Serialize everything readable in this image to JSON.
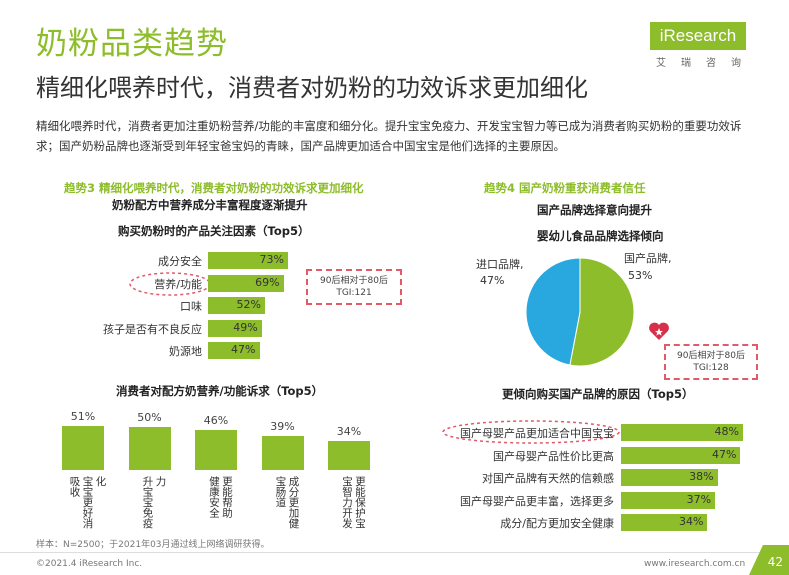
{
  "header": {
    "title": "奶粉品类趋势",
    "subtitle": "精细化喂养时代，消费者对奶粉的功效诉求更加细化",
    "intro": "精细化喂养时代，消费者更加注重奶粉营养/功能的丰富度和细分化。提升宝宝免疫力、开发宝宝智力等已成为消费者购买奶粉的重要功效诉求；国产奶粉品牌也逐渐受到年轻宝爸宝妈的青睐，国产品牌更加适合中国宝宝是他们选择的主要原因。",
    "logo_text": "iResearch",
    "logo_sub": "艾瑞咨询",
    "brand_color": "#8dbd2b"
  },
  "left": {
    "trend_title": "趋势3 精细化喂养时代，消费者对奶粉的功效诉求更加细化",
    "section_title": "奶粉配方中营养成分丰富程度逐渐提升",
    "tgi_line1": "90后相对于80后",
    "tgi_line2": "TGI:121"
  },
  "right": {
    "trend_title": "趋势4 国产奶粉重获消费者信任",
    "section_title": "国产品牌选择意向提升",
    "tgi_line1": "90后相对于80后",
    "tgi_line2": "TGI:128"
  },
  "chart_data": [
    {
      "type": "bar",
      "orientation": "horizontal",
      "title": "购买奶粉时的产品关注因素（Top5）",
      "categories": [
        "成分安全",
        "营养/功能",
        "口味",
        "孩子是否有不良反应",
        "奶源地"
      ],
      "values": [
        73,
        69,
        52,
        49,
        47
      ],
      "value_labels": [
        "73%",
        "69%",
        "52%",
        "49%",
        "47%"
      ],
      "highlight": "营养/功能"
    },
    {
      "type": "bar",
      "orientation": "vertical",
      "title": "消费者对配方奶营养/功能诉求（Top5）",
      "categories": [
        "宝宝更好消化 吸收",
        "提升宝宝免疫力",
        "更能帮助宝宝健康安全",
        "成分更加健康宝宝肠道",
        "更能保护宝宝智力开发"
      ],
      "label_columns": [
        [
          "化",
          "宝宝更好消",
          "吸收"
        ],
        [
          "力",
          "升宝宝免疫"
        ],
        [
          "更能帮助",
          "健康安全"
        ],
        [
          "成分更加健",
          "宝肠道"
        ],
        [
          "更能保护宝",
          "宝智力开发"
        ]
      ],
      "values": [
        51,
        50,
        46,
        39,
        34
      ],
      "value_labels": [
        "51%",
        "50%",
        "46%",
        "39%",
        "34%"
      ]
    },
    {
      "type": "pie",
      "title": "婴幼儿食品品牌选择倾向",
      "categories": [
        "国产品牌,",
        "进口品牌,"
      ],
      "values": [
        53,
        47
      ],
      "value_labels": [
        "53%",
        "47%"
      ],
      "colors": [
        "#8dbd2b",
        "#29a8e0"
      ]
    },
    {
      "type": "bar",
      "orientation": "horizontal",
      "title": "更倾向购买国产品牌的原因（Top5）",
      "categories": [
        "国产母婴产品更加适合中国宝宝",
        "国产母婴产品性价比更高",
        "对国产品牌有天然的信赖感",
        "国产母婴产品更丰富，选择更多",
        "成分/配方更加安全健康"
      ],
      "values": [
        48,
        47,
        38,
        37,
        34
      ],
      "value_labels": [
        "48%",
        "47%",
        "38%",
        "37%",
        "34%"
      ],
      "highlight": "国产母婴产品更加适合中国宝宝"
    }
  ],
  "footer": {
    "sample": "样本：N=2500；于2021年03月通过线上网络调研获得。",
    "copyright": "©2021.4 iResearch Inc.",
    "site": "www.iresearch.com.cn",
    "page": "42"
  }
}
